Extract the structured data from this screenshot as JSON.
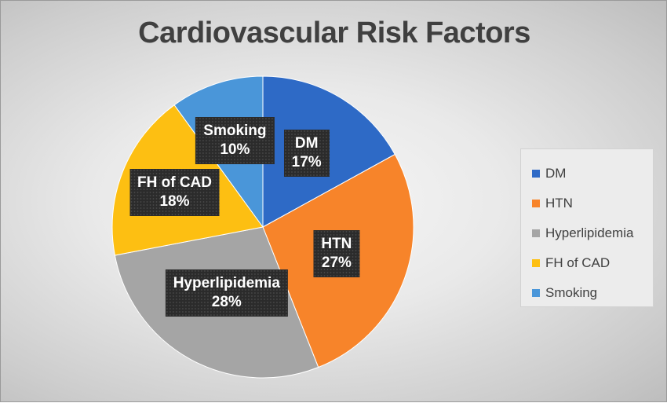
{
  "chart_data": {
    "type": "pie",
    "title": "Cardiovascular Risk Factors",
    "categories": [
      "DM",
      "HTN",
      "Hyperlipidemia",
      "FH of CAD",
      "Smoking"
    ],
    "values": [
      17,
      27,
      28,
      18,
      10
    ],
    "labels": [
      "17%",
      "27%",
      "28%",
      "18%",
      "10%"
    ],
    "colors": [
      "#2e6ac6",
      "#f7842a",
      "#a5a5a5",
      "#fdbf12",
      "#4a96d9"
    ],
    "legend_position": "right"
  }
}
